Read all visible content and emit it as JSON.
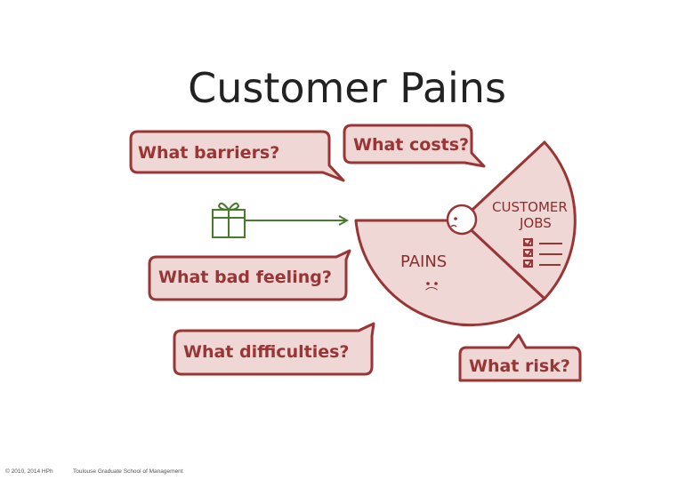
{
  "slide": {
    "title": "Customer Pains"
  },
  "bubbles": {
    "barriers": "What barriers?",
    "costs": "What costs?",
    "bad_feeling": "What bad feeling?",
    "difficulties": "What difficulties?",
    "risk": "What risk?"
  },
  "canvas": {
    "jobs_line1": "CUSTOMER",
    "jobs_line2": "JOBS",
    "pains_label": "PAINS",
    "sad_face": "⌒"
  },
  "footer": {
    "copyright": "© 2010, 2014 HPh",
    "school": "Toulouse Graduate School of Management"
  },
  "colors": {
    "bubble_fill": "#efd7d5",
    "bubble_stroke": "#9a3535",
    "gift_green": "#4a7a2c"
  }
}
